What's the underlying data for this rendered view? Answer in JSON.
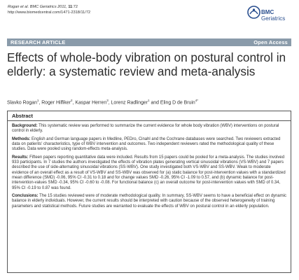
{
  "header": {
    "citation_authors": "Rogan",
    "citation_rest": " et al. BMC Geriatrics 2011, ",
    "citation_vol": "11",
    "citation_page": ":72",
    "url": "http://www.biomedcentral.com/1471-2318/11/72"
  },
  "logo": {
    "line1": "BMC",
    "line2": "Geriatrics",
    "icon": "bmc-circle-logo"
  },
  "banner": {
    "article_type": "RESEARCH ARTICLE",
    "access": "Open Access"
  },
  "title": "Effects of whole-body vibration on postural control in elderly: a systematic review and meta-analysis",
  "authors": [
    {
      "name": "Slavko Rogan",
      "sup": "1"
    },
    {
      "name": "Roger Hilfiker",
      "sup": "2"
    },
    {
      "name": "Kaspar Herren",
      "sup": "3"
    },
    {
      "name": "Lorenz Radlinger",
      "sup": "1"
    },
    {
      "name": "Eling D de Bruin",
      "sup": "4*"
    }
  ],
  "authors_and": "and",
  "abstract": {
    "heading": "Abstract",
    "sections": [
      {
        "label": "Background:",
        "text": " This systematic review was performed to summarize the current evidence for whole body vibration (WBV) interventions on postural control in elderly."
      },
      {
        "label": "Methods:",
        "text": " English and German language papers in Medline, PEDro, Cinahl and the Cochrane databases were searched. Two reviewers extracted data on patients' characteristics, type of WBV intervention and outcomes. Two independent reviewers rated the methodological quality of these studies. Data were pooled using random-effects meta-analysis."
      },
      {
        "label": "Results:",
        "text": " Fifteen papers reporting quantitative data were included. Results from 15 papers could be pooled for a meta-analysis. The studies involved 933 participants. In 7 studies the authors investigated the effects of vibration plates generating vertical sinusoidal vibrations (VS-WBV) and 7 papers described the use of side-alternating sinusoidal vibrations (SS-WBV). One study investigated both VS-WBV and SS-WBV. Weak to moderate evidence of an overall effect as a result of VS-WBV and SS-WBV was observed for (a) static balance for post-intervention values with a standardized mean difference (SMD) -0.06, 95% CI -0.31 to 0.18 and for change values SMD -0.26, 95% CI -1.09 to 0.57, and (b) dynamic balance for post-intervention-values SMD -0.34, 95% CI -0.60 to -0.08. For functional balance (c) an overall outcome for post-intervention values with SMD of 0.34, 95% CI -0.19 to 0.87 was found."
      },
      {
        "label": "Conclusions:",
        "text": " The 15 studies reviewed were of moderate methodological quality. In summary, SS-WBV seems to have a beneficial effect on dynamic balance in elderly individuals. However, the current results should be interpreted with caution because of the observed heterogeneity of training parameters and statistical methods. Future studies are warranted to evaluate the effects of WBV on postural control in an elderly population."
      }
    ]
  },
  "colors": {
    "banner": "#8a9baa",
    "logo_blue": "#2a4f8f"
  }
}
